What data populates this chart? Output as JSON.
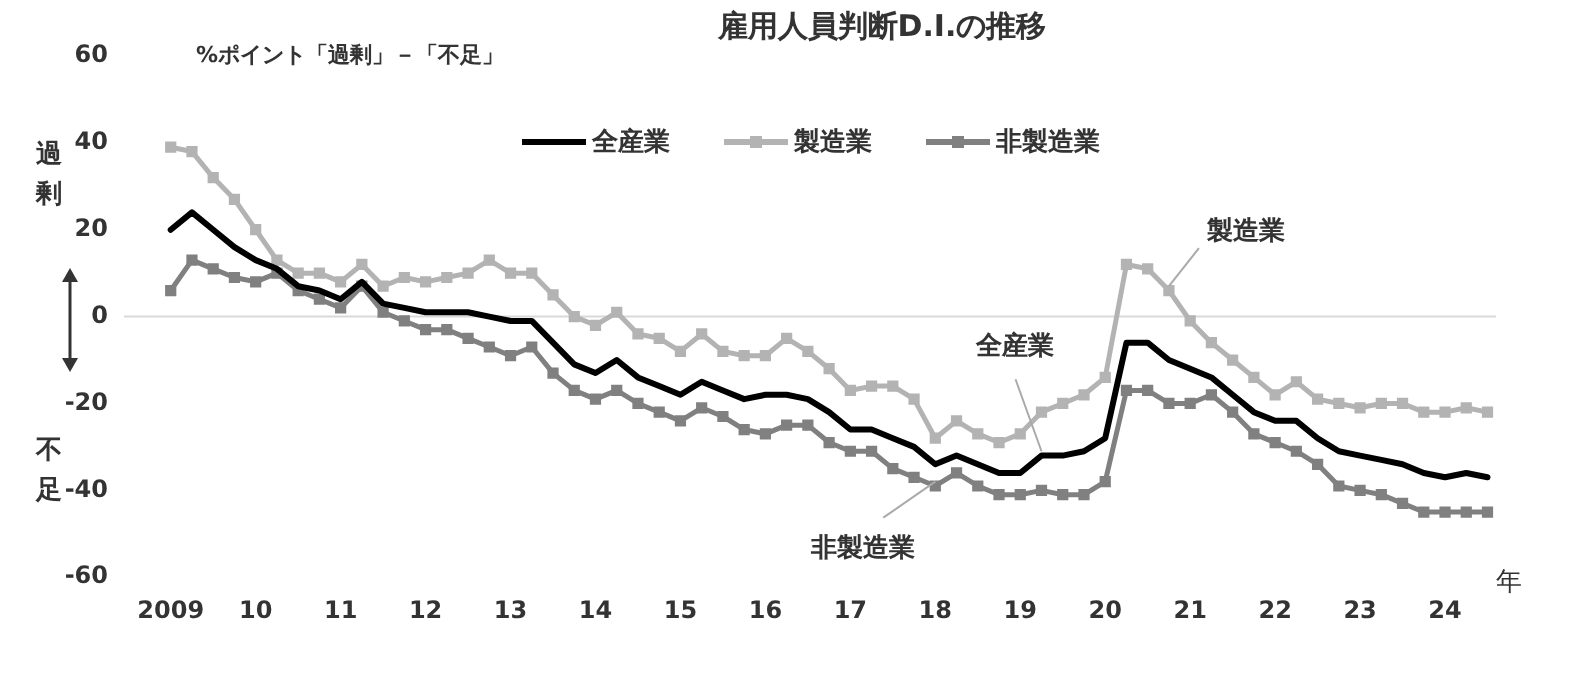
{
  "chart_data": {
    "type": "line",
    "title": "雇用人員判断D.I.の推移",
    "ylabel": "%ポイント「過剰」－「不足」",
    "xlabel": "年",
    "x": [
      2009,
      2009.25,
      2009.5,
      2009.75,
      2010,
      2010.25,
      2010.5,
      2010.75,
      2011,
      2011.25,
      2011.5,
      2011.75,
      2012,
      2012.25,
      2012.5,
      2012.75,
      2013,
      2013.25,
      2013.5,
      2013.75,
      2014,
      2014.25,
      2014.5,
      2014.75,
      2015,
      2015.25,
      2015.5,
      2015.75,
      2016,
      2016.25,
      2016.5,
      2016.75,
      2017,
      2017.25,
      2017.5,
      2017.75,
      2018,
      2018.25,
      2018.5,
      2018.75,
      2019,
      2019.25,
      2019.5,
      2019.75,
      2020,
      2020.25,
      2020.5,
      2020.75,
      2021,
      2021.25,
      2021.5,
      2021.75,
      2022,
      2022.25,
      2022.5,
      2022.75,
      2023,
      2023.25,
      2023.5,
      2023.75,
      2024,
      2024.25,
      2024.5
    ],
    "series": [
      {
        "name": "全産業",
        "color": "#000000",
        "marker": "none",
        "values": [
          20,
          24,
          20,
          16,
          13,
          11,
          7,
          6,
          4,
          8,
          3,
          2,
          1,
          1,
          1,
          0,
          -1,
          -1,
          -6,
          -11,
          -13,
          -10,
          -14,
          -16,
          -18,
          -15,
          -17,
          -19,
          -18,
          -18,
          -19,
          -22,
          -26,
          -26,
          -28,
          -30,
          -34,
          -32,
          -34,
          -36,
          -36,
          -32,
          -32,
          -31,
          -28,
          -6,
          -6,
          -10,
          -12,
          -14,
          -18,
          -22,
          -24,
          -24,
          -28,
          -31,
          -32,
          -33,
          -34,
          -36,
          -37,
          -36,
          -37
        ]
      },
      {
        "name": "製造業",
        "color": "#b3b3b3",
        "marker": "square",
        "values": [
          39,
          38,
          32,
          27,
          20,
          13,
          10,
          10,
          8,
          12,
          7,
          9,
          8,
          9,
          10,
          13,
          10,
          10,
          5,
          0,
          -2,
          1,
          -4,
          -5,
          -8,
          -4,
          -8,
          -9,
          -9,
          -5,
          -8,
          -12,
          -17,
          -16,
          -16,
          -19,
          -28,
          -24,
          -27,
          -29,
          -27,
          -22,
          -20,
          -18,
          -14,
          12,
          11,
          6,
          -1,
          -6,
          -10,
          -14,
          -18,
          -15,
          -19,
          -20,
          -21,
          -20,
          -20,
          -22,
          -22,
          -21,
          -22
        ]
      },
      {
        "name": "非製造業",
        "color": "#808080",
        "marker": "square",
        "values": [
          6,
          13,
          11,
          9,
          8,
          10,
          6,
          4,
          2,
          7,
          1,
          -1,
          -3,
          -3,
          -5,
          -7,
          -9,
          -7,
          -13,
          -17,
          -19,
          -17,
          -20,
          -22,
          -24,
          -21,
          -23,
          -26,
          -27,
          -25,
          -25,
          -29,
          -31,
          -31,
          -35,
          -37,
          -39,
          -36,
          -39,
          -41,
          -41,
          -40,
          -41,
          -41,
          -38,
          -17,
          -17,
          -20,
          -20,
          -18,
          -22,
          -27,
          -29,
          -31,
          -34,
          -39,
          -40,
          -41,
          -43,
          -45,
          -45,
          -45,
          -45
        ]
      }
    ],
    "xlim": [
      2008.45,
      2024.6
    ],
    "xticks": [
      {
        "value": 2009,
        "label": "2009"
      },
      {
        "value": 2010,
        "label": "10"
      },
      {
        "value": 2011,
        "label": "11"
      },
      {
        "value": 2012,
        "label": "12"
      },
      {
        "value": 2013,
        "label": "13"
      },
      {
        "value": 2014,
        "label": "14"
      },
      {
        "value": 2015,
        "label": "15"
      },
      {
        "value": 2016,
        "label": "16"
      },
      {
        "value": 2017,
        "label": "17"
      },
      {
        "value": 2018,
        "label": "18"
      },
      {
        "value": 2019,
        "label": "19"
      },
      {
        "value": 2020,
        "label": "20"
      },
      {
        "value": 2021,
        "label": "21"
      },
      {
        "value": 2022,
        "label": "22"
      },
      {
        "value": 2023,
        "label": "23"
      },
      {
        "value": 2024,
        "label": "24"
      }
    ],
    "ylim": [
      -60,
      60
    ],
    "yticks": [
      -60,
      -40,
      -20,
      0,
      20,
      40,
      60
    ],
    "ref_lines": [
      {
        "axis": "y",
        "value": 0,
        "color": "#d9d9d9"
      }
    ],
    "annotations": [
      "過剰",
      "不足",
      {
        "text": "製造業",
        "x": 2020.75,
        "y": 7
      },
      {
        "text": "全産業",
        "x": 2019.25,
        "y": -31
      },
      {
        "text": "非製造業",
        "x": 2018,
        "y": -38
      }
    ],
    "grid": false,
    "legend": "top",
    "line_style": "solid"
  }
}
